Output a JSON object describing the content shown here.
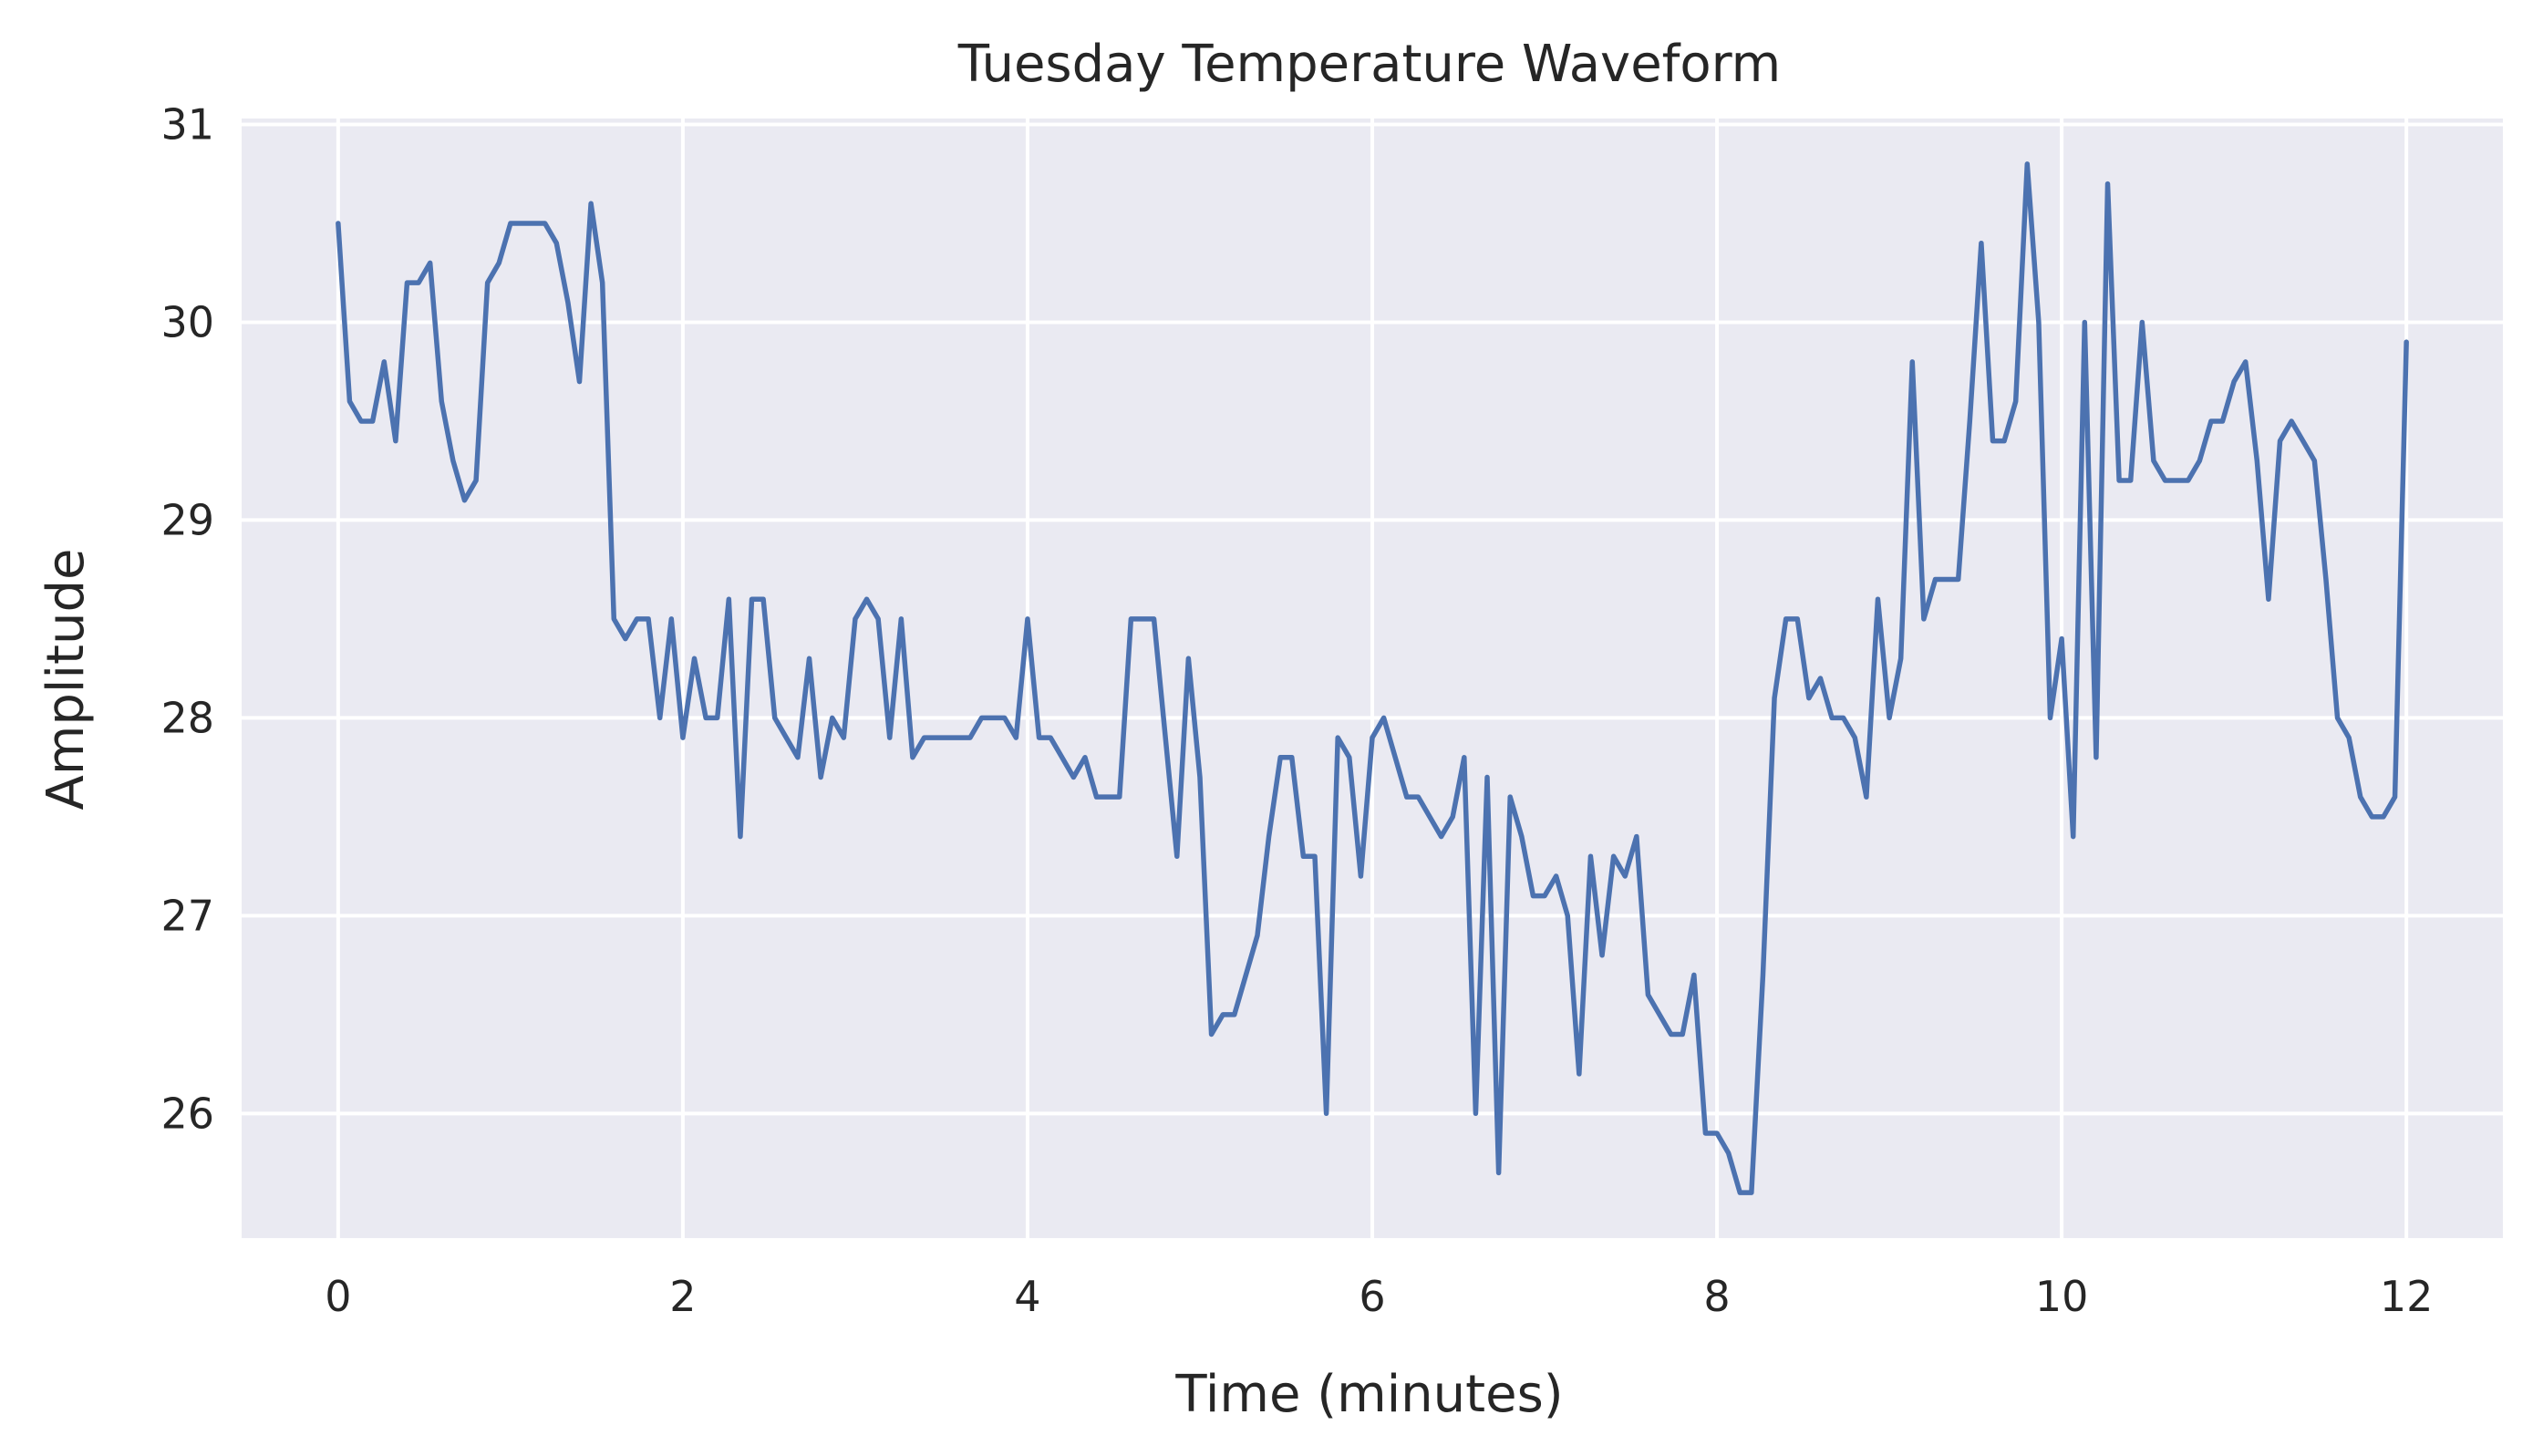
{
  "chart_data": {
    "type": "line",
    "title": "Tuesday Temperature Waveform",
    "xlabel": "Time (minutes)",
    "ylabel": "Amplitude",
    "xlim": [
      -0.56,
      12.56
    ],
    "ylim": [
      25.37,
      31.03
    ],
    "xticks": [
      0,
      2,
      4,
      6,
      8,
      10,
      12
    ],
    "yticks": [
      26,
      27,
      28,
      29,
      30,
      31
    ],
    "grid": true,
    "colors": {
      "plot_background": "#eaeaf2",
      "line": "#4c72b0",
      "grid": "#ffffff"
    },
    "series": [
      {
        "x": [
          0,
          0.0667,
          0.1333,
          0.2,
          0.2667,
          0.3333,
          0.4,
          0.4667,
          0.5333,
          0.6,
          0.6667,
          0.7333,
          0.8,
          0.8667,
          0.9333,
          1.0,
          1.0667,
          1.1333,
          1.2,
          1.2667,
          1.3333,
          1.4,
          1.4667,
          1.5333,
          1.6,
          1.6667,
          1.7333,
          1.8,
          1.8667,
          1.9333,
          2.0,
          2.0667,
          2.1333,
          2.2,
          2.2667,
          2.3333,
          2.4,
          2.4667,
          2.5333,
          2.6,
          2.6667,
          2.7333,
          2.8,
          2.8667,
          2.9333,
          3.0,
          3.0667,
          3.1333,
          3.2,
          3.2667,
          3.3333,
          3.4,
          3.4667,
          3.5333,
          3.6,
          3.6667,
          3.7333,
          3.8,
          3.8667,
          3.9333,
          4.0,
          4.0667,
          4.1333,
          4.2,
          4.2667,
          4.3333,
          4.4,
          4.4667,
          4.5333,
          4.6,
          4.6667,
          4.7333,
          4.8,
          4.8667,
          4.9333,
          5.0,
          5.0667,
          5.1333,
          5.2,
          5.2667,
          5.3333,
          5.4,
          5.4667,
          5.5333,
          5.6,
          5.6667,
          5.7333,
          5.8,
          5.8667,
          5.9333,
          6.0,
          6.0667,
          6.1333,
          6.2,
          6.2667,
          6.3333,
          6.4,
          6.4667,
          6.5333,
          6.6,
          6.6667,
          6.7333,
          6.8,
          6.8667,
          6.9333,
          7.0,
          7.0667,
          7.1333,
          7.2,
          7.2667,
          7.3333,
          7.4,
          7.4667,
          7.5333,
          7.6,
          7.6667,
          7.7333,
          7.8,
          7.8667,
          7.9333,
          8.0,
          8.0667,
          8.1333,
          8.2,
          8.2667,
          8.3333,
          8.4,
          8.4667,
          8.5333,
          8.6,
          8.6667,
          8.7333,
          8.8,
          8.8667,
          8.9333,
          9.0,
          9.0667,
          9.1333,
          9.2,
          9.2667,
          9.3333,
          9.4,
          9.4667,
          9.5333,
          9.6,
          9.6667,
          9.7333,
          9.8,
          9.8667,
          9.9333,
          10.0,
          10.0667,
          10.1333,
          10.2,
          10.2667,
          10.3333,
          10.4,
          10.4667,
          10.5333,
          10.6,
          10.6667,
          10.7333,
          10.8,
          10.8667,
          10.9333,
          11.0,
          11.0667,
          11.1333,
          11.2,
          11.2667,
          11.3333,
          11.4,
          11.4667,
          11.5333,
          11.6,
          11.6667,
          11.7333,
          11.8,
          11.8667,
          11.9333,
          12.0
        ],
        "values": [
          30.5,
          29.6,
          29.5,
          29.5,
          29.8,
          29.4,
          30.2,
          30.2,
          30.3,
          29.6,
          29.3,
          29.1,
          29.2,
          30.2,
          30.3,
          30.5,
          30.5,
          30.5,
          30.5,
          30.4,
          30.1,
          29.7,
          30.6,
          30.2,
          28.5,
          28.4,
          28.5,
          28.5,
          28.0,
          28.5,
          27.9,
          28.3,
          28.0,
          28.0,
          28.6,
          27.4,
          28.6,
          28.6,
          28.0,
          27.9,
          27.8,
          28.3,
          27.7,
          28.0,
          27.9,
          28.5,
          28.6,
          28.5,
          27.9,
          28.5,
          27.8,
          27.9,
          27.9,
          27.9,
          27.9,
          27.9,
          28.0,
          28.0,
          28.0,
          27.9,
          28.5,
          27.9,
          27.9,
          27.8,
          27.7,
          27.8,
          27.6,
          27.6,
          27.6,
          28.5,
          28.5,
          28.5,
          27.9,
          27.3,
          28.3,
          27.7,
          26.4,
          26.5,
          26.5,
          26.7,
          26.9,
          27.4,
          27.8,
          27.8,
          27.3,
          27.3,
          26.0,
          27.9,
          27.8,
          27.2,
          27.9,
          28.0,
          27.8,
          27.6,
          27.6,
          27.5,
          27.4,
          27.5,
          27.8,
          26.0,
          27.7,
          25.7,
          27.6,
          27.4,
          27.1,
          27.1,
          27.2,
          27.0,
          26.2,
          27.3,
          26.8,
          27.3,
          27.2,
          27.4,
          26.6,
          26.5,
          26.4,
          26.4,
          26.7,
          25.9,
          25.9,
          25.8,
          25.6,
          25.6,
          26.7,
          28.1,
          28.5,
          28.5,
          28.1,
          28.2,
          28.0,
          28.0,
          27.9,
          27.6,
          28.6,
          28.0,
          28.3,
          29.8,
          28.5,
          28.7,
          28.7,
          28.7,
          29.5,
          30.4,
          29.4,
          29.4,
          29.6,
          30.8,
          30.0,
          28.0,
          28.4,
          27.4,
          30.0,
          27.8,
          30.7,
          29.2,
          29.2,
          30.0,
          29.3,
          29.2,
          29.2,
          29.2,
          29.3,
          29.5,
          29.5,
          29.7,
          29.8,
          29.3,
          28.6,
          29.4,
          29.5,
          29.4,
          29.3,
          28.7,
          28.0,
          27.9,
          27.6,
          27.5,
          27.5,
          27.6,
          29.9
        ]
      }
    ]
  }
}
